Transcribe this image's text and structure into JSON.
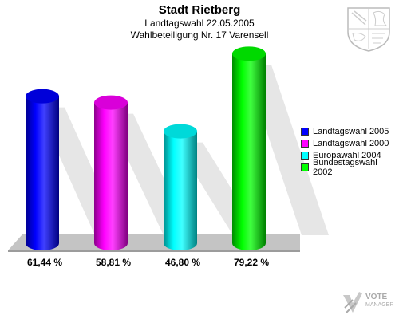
{
  "header": {
    "title": "Stadt Rietberg",
    "subtitle": "Landtagswahl 22.05.2005",
    "subtitle2": "Wahlbeteiligung Nr. 17 Varensell"
  },
  "logo": {
    "word1": "VOTE",
    "word2": "MANAGER"
  },
  "chart_data": {
    "type": "bar",
    "title": "Stadt Rietberg",
    "ylim": [
      0,
      100
    ],
    "legend_position": "right",
    "series": [
      {
        "name": "Landtagswahl 2005",
        "value": 61.44,
        "label": "61,44 %",
        "color": "#0000ff"
      },
      {
        "name": "Landtagswahl 2000",
        "value": 58.81,
        "label": "58,81 %",
        "color": "#ff00ff"
      },
      {
        "name": "Europawahl 2004",
        "value": 46.8,
        "label": "46,80 %",
        "color": "#00ffff"
      },
      {
        "name": "Bundestagswahl 2002",
        "value": 79.22,
        "label": "79,22 %",
        "color": "#00ff00"
      }
    ]
  }
}
